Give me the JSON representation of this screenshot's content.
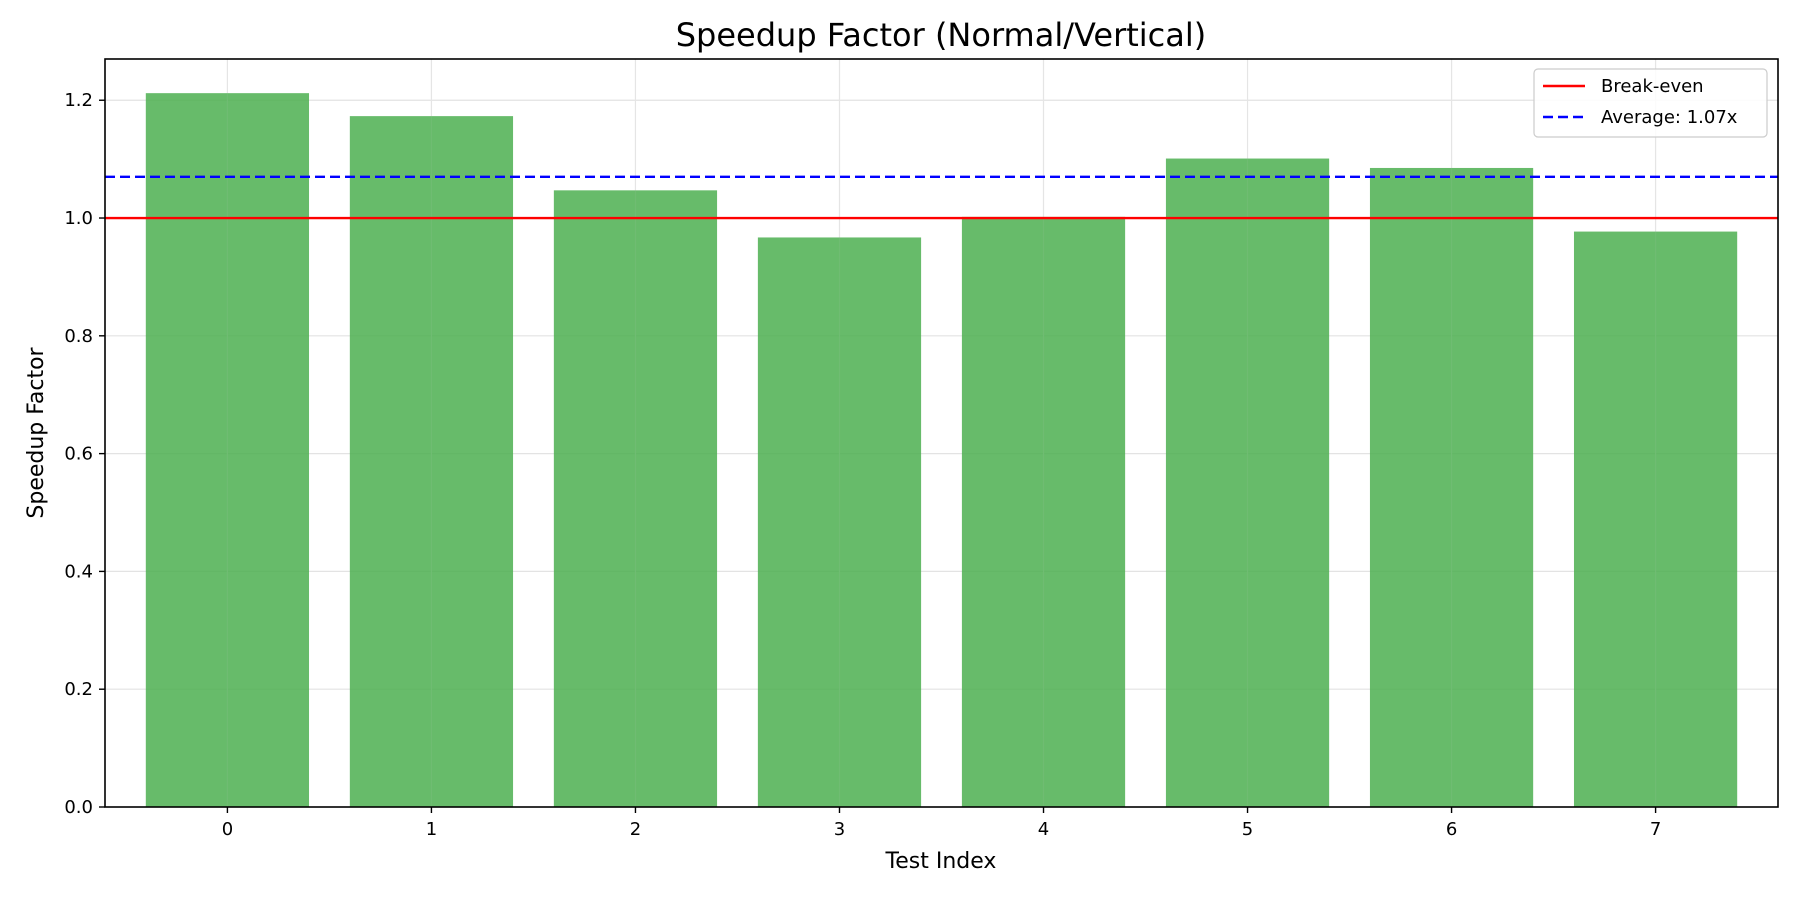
{
  "chart_data": {
    "type": "bar",
    "title": "Speedup Factor (Normal/Vertical)",
    "xlabel": "Test Index",
    "ylabel": "Speedup Factor",
    "categories": [
      "0",
      "1",
      "2",
      "3",
      "4",
      "5",
      "6",
      "7"
    ],
    "values": [
      1.212,
      1.173,
      1.047,
      0.967,
      1.002,
      1.101,
      1.085,
      0.977
    ],
    "ylim": [
      0,
      1.27
    ],
    "yticks": [
      0.0,
      0.2,
      0.4,
      0.6,
      0.8,
      1.0,
      1.2
    ],
    "ytick_labels": [
      "0.0",
      "0.2",
      "0.4",
      "0.6",
      "0.8",
      "1.0",
      "1.2"
    ],
    "grid": true,
    "legend_position": "top-right",
    "bar_color": "#4caf50",
    "reference_lines": [
      {
        "label": "Break-even",
        "value": 1.0,
        "color": "#ff0000",
        "style": "solid"
      },
      {
        "label": "Average: 1.07x",
        "value": 1.07,
        "color": "#0000ff",
        "style": "dashed"
      }
    ]
  }
}
